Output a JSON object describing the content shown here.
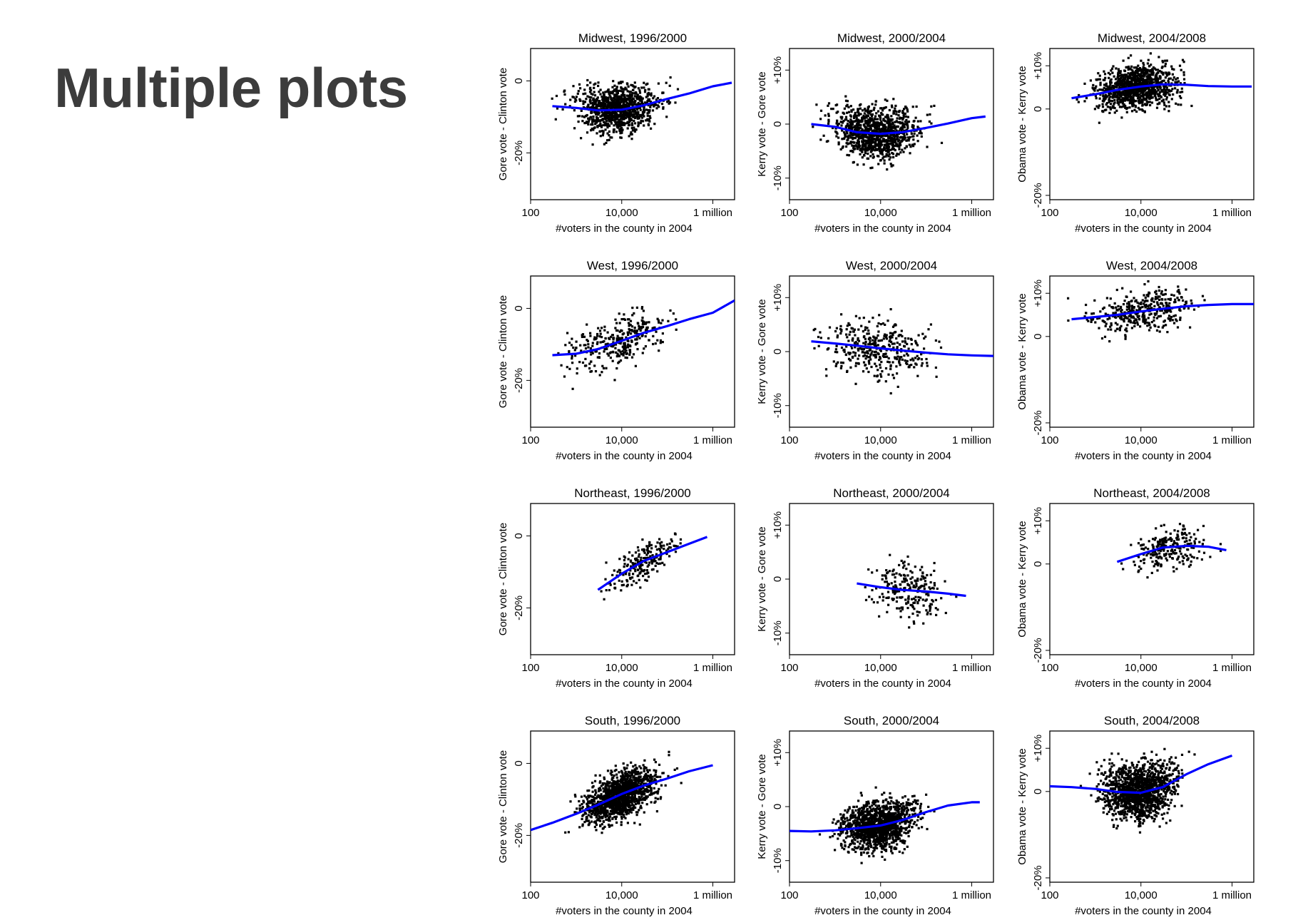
{
  "slide": {
    "title": "Multiple plots"
  },
  "shared": {
    "xlabel": "#voters in the county in 2004",
    "x_ticks": [
      {
        "value": 100,
        "label": "100"
      },
      {
        "value": 10000,
        "label": "10,000"
      },
      {
        "value": 1000000,
        "label": "1 million"
      }
    ],
    "x_scale": "log",
    "xlim": [
      100,
      3000000
    ],
    "grid": false,
    "point_color": "#000000",
    "line_color": "#0000ff"
  },
  "chart_data": [
    {
      "type": "scatter",
      "title": "Midwest, 1996/2000",
      "ylabel": "Gore vote - Clinton vote",
      "y_ticks": [
        {
          "value": 0,
          "label": "0"
        },
        {
          "value": -20,
          "label": "-20%"
        }
      ],
      "ylim": [
        -33,
        9
      ],
      "points": {
        "n": 1050,
        "seed": 101,
        "x_log_mean": 3.9,
        "x_log_sd": 0.62,
        "x_log_min": 2.3,
        "x_log_max": 6.2,
        "y_noise_sd": 4.4,
        "y_min": -22,
        "y_max": 8
      },
      "series": [
        {
          "x": [
            300,
            1000,
            3000,
            10000,
            30000,
            100000,
            300000,
            1000000,
            2600000
          ],
          "y": [
            -7,
            -7.5,
            -8.2,
            -8,
            -6.8,
            -5,
            -3.5,
            -1.5,
            -0.5
          ]
        }
      ]
    },
    {
      "type": "scatter",
      "title": "Midwest, 2000/2004",
      "ylabel": "Kerry vote - Gore vote",
      "y_ticks": [
        {
          "value": 10,
          "label": "+10%"
        },
        {
          "value": 0,
          "label": "0"
        },
        {
          "value": -10,
          "label": "-10%"
        }
      ],
      "ylim": [
        -14,
        14
      ],
      "points": {
        "n": 1050,
        "seed": 102,
        "x_log_mean": 3.9,
        "x_log_sd": 0.62,
        "x_log_min": 2.3,
        "x_log_max": 6.1,
        "y_noise_sd": 3.3,
        "y_min": -10,
        "y_max": 13
      },
      "series": [
        {
          "x": [
            300,
            1000,
            3000,
            10000,
            30000,
            100000,
            300000,
            1000000,
            2000000
          ],
          "y": [
            0,
            -0.5,
            -1.5,
            -1.8,
            -1.5,
            -0.7,
            0.1,
            1.1,
            1.4
          ]
        }
      ]
    },
    {
      "type": "scatter",
      "title": "Midwest, 2004/2008",
      "ylabel": "Obama vote - Kerry vote",
      "y_ticks": [
        {
          "value": 10,
          "label": "+10%"
        },
        {
          "value": 0,
          "label": "0"
        },
        {
          "value": -20,
          "label": "-20%"
        }
      ],
      "ylim": [
        -21,
        14
      ],
      "points": {
        "n": 1050,
        "seed": 103,
        "x_log_mean": 3.9,
        "x_log_sd": 0.62,
        "x_log_min": 2.3,
        "x_log_max": 6.4,
        "y_noise_sd": 3.4,
        "y_min": -5,
        "y_max": 13
      },
      "series": [
        {
          "x": [
            300,
            1000,
            3000,
            10000,
            30000,
            100000,
            300000,
            1000000,
            2700000
          ],
          "y": [
            2.5,
            3.4,
            4.4,
            5.2,
            5.7,
            5.6,
            5.3,
            5.2,
            5.2
          ]
        }
      ]
    },
    {
      "type": "scatter",
      "title": "West, 1996/2000",
      "ylabel": "Gore vote - Clinton vote",
      "y_ticks": [
        {
          "value": 0,
          "label": "0"
        },
        {
          "value": -20,
          "label": "-20%"
        }
      ],
      "ylim": [
        -33,
        9
      ],
      "points": {
        "n": 330,
        "seed": 201,
        "x_log_mean": 3.9,
        "x_log_sd": 0.75,
        "x_log_min": 2.4,
        "x_log_max": 6.1,
        "y_noise_sd": 4.4,
        "y_min": -27,
        "y_max": 3
      },
      "series": [
        {
          "x": [
            300,
            1000,
            3000,
            10000,
            30000,
            100000,
            300000,
            1000000,
            3000000
          ],
          "y": [
            -13,
            -12.6,
            -11.3,
            -9,
            -6.8,
            -4.9,
            -3,
            -1.2,
            2.2
          ]
        }
      ]
    },
    {
      "type": "scatter",
      "title": "West, 2000/2004",
      "ylabel": "Kerry vote - Gore vote",
      "y_ticks": [
        {
          "value": 10,
          "label": "+10%"
        },
        {
          "value": 0,
          "label": "0"
        },
        {
          "value": -10,
          "label": "-10%"
        }
      ],
      "ylim": [
        -14,
        14
      ],
      "points": {
        "n": 370,
        "seed": 202,
        "x_log_mean": 3.95,
        "x_log_sd": 0.78,
        "x_log_min": 2.4,
        "x_log_max": 6.5,
        "y_noise_sd": 3.8,
        "y_min": -8,
        "y_max": 12
      },
      "series": [
        {
          "x": [
            300,
            1000,
            3000,
            10000,
            30000,
            100000,
            300000,
            1000000,
            3000000
          ],
          "y": [
            1.9,
            1.5,
            1.1,
            0.6,
            0.2,
            -0.2,
            -0.5,
            -0.7,
            -0.8
          ]
        }
      ]
    },
    {
      "type": "scatter",
      "title": "West, 2004/2008",
      "ylabel": "Obama vote - Kerry vote",
      "y_ticks": [
        {
          "value": 10,
          "label": "+10%"
        },
        {
          "value": 0,
          "label": "0"
        },
        {
          "value": -20,
          "label": "-20%"
        }
      ],
      "ylim": [
        -21,
        14
      ],
      "points": {
        "n": 380,
        "seed": 203,
        "x_log_mean": 4.0,
        "x_log_sd": 0.75,
        "x_log_min": 2.4,
        "x_log_max": 6.3,
        "y_noise_sd": 3.2,
        "y_min": -3,
        "y_max": 13
      },
      "series": [
        {
          "x": [
            300,
            1000,
            3000,
            10000,
            30000,
            100000,
            300000,
            1000000,
            3000000
          ],
          "y": [
            4,
            4.5,
            5,
            5.8,
            6.4,
            7,
            7.3,
            7.5,
            7.5
          ]
        }
      ]
    },
    {
      "type": "scatter",
      "title": "Northeast, 1996/2000",
      "ylabel": "Gore vote - Clinton vote",
      "y_ticks": [
        {
          "value": 0,
          "label": "0"
        },
        {
          "value": -20,
          "label": "-20%"
        }
      ],
      "ylim": [
        -33,
        9
      ],
      "points": {
        "n": 220,
        "seed": 301,
        "x_log_mean": 4.45,
        "x_log_sd": 0.55,
        "x_log_min": 3.4,
        "x_log_max": 5.9,
        "y_noise_sd": 3.6,
        "y_min": -24,
        "y_max": 3
      },
      "series": [
        {
          "x": [
            3000,
            10000,
            30000,
            100000,
            300000,
            750000
          ],
          "y": [
            -15,
            -10.5,
            -7,
            -4.5,
            -2.2,
            -0.3
          ]
        }
      ]
    },
    {
      "type": "scatter",
      "title": "Northeast, 2000/2004",
      "ylabel": "Kerry vote - Gore vote",
      "y_ticks": [
        {
          "value": 10,
          "label": "+10%"
        },
        {
          "value": 0,
          "label": "0"
        },
        {
          "value": -10,
          "label": "-10%"
        }
      ],
      "ylim": [
        -14,
        14
      ],
      "points": {
        "n": 230,
        "seed": 302,
        "x_log_mean": 4.6,
        "x_log_sd": 0.55,
        "x_log_min": 3.4,
        "x_log_max": 6.0,
        "y_noise_sd": 3.6,
        "y_min": -12,
        "y_max": 8
      },
      "series": [
        {
          "x": [
            3000,
            10000,
            30000,
            100000,
            300000,
            750000
          ],
          "y": [
            -0.8,
            -1.5,
            -2,
            -2.3,
            -2.7,
            -3.1
          ]
        }
      ]
    },
    {
      "type": "scatter",
      "title": "Northeast, 2004/2008",
      "ylabel": "Obama vote - Kerry vote",
      "y_ticks": [
        {
          "value": 10,
          "label": "+10%"
        },
        {
          "value": 0,
          "label": "0"
        },
        {
          "value": -20,
          "label": "-20%"
        }
      ],
      "ylim": [
        -21,
        14
      ],
      "points": {
        "n": 240,
        "seed": 303,
        "x_log_mean": 4.6,
        "x_log_sd": 0.55,
        "x_log_min": 3.4,
        "x_log_max": 6.0,
        "y_noise_sd": 3.2,
        "y_min": -9,
        "y_max": 12
      },
      "series": [
        {
          "x": [
            3000,
            10000,
            30000,
            100000,
            300000,
            750000
          ],
          "y": [
            0.5,
            2.3,
            3.8,
            4.2,
            4,
            3.2
          ]
        }
      ]
    },
    {
      "type": "scatter",
      "title": "South, 1996/2000",
      "ylabel": "Gore vote - Clinton vote",
      "y_ticks": [
        {
          "value": 0,
          "label": "0"
        },
        {
          "value": -20,
          "label": "-20%"
        }
      ],
      "ylim": [
        -33,
        9
      ],
      "points": {
        "n": 1350,
        "seed": 401,
        "x_log_mean": 3.95,
        "x_log_sd": 0.55,
        "x_log_min": 2.2,
        "x_log_max": 6.1,
        "y_noise_sd": 4.4,
        "y_min": -24,
        "y_max": 6
      },
      "series": [
        {
          "x": [
            100,
            300,
            1000,
            3000,
            10000,
            30000,
            100000,
            300000,
            1000000
          ],
          "y": [
            -18.5,
            -16.5,
            -14,
            -11.5,
            -8.5,
            -6.2,
            -4.2,
            -2.2,
            -0.5
          ]
        }
      ]
    },
    {
      "type": "scatter",
      "title": "South, 2000/2004",
      "ylabel": "Kerry vote - Gore vote",
      "y_ticks": [
        {
          "value": 10,
          "label": "+10%"
        },
        {
          "value": 0,
          "label": "0"
        },
        {
          "value": -10,
          "label": "-10%"
        }
      ],
      "ylim": [
        -14,
        14
      ],
      "points": {
        "n": 1350,
        "seed": 402,
        "x_log_mean": 3.95,
        "x_log_sd": 0.55,
        "x_log_min": 2.2,
        "x_log_max": 6.1,
        "y_noise_sd": 3.2,
        "y_min": -13,
        "y_max": 11
      },
      "series": [
        {
          "x": [
            100,
            300,
            1000,
            3000,
            10000,
            30000,
            100000,
            300000,
            1000000,
            1500000
          ],
          "y": [
            -4.5,
            -4.6,
            -4.4,
            -4,
            -3.5,
            -2.5,
            -1,
            0.2,
            0.8,
            0.8
          ]
        }
      ]
    },
    {
      "type": "scatter",
      "title": "South, 2004/2008",
      "ylabel": "Obama vote - Kerry vote",
      "y_ticks": [
        {
          "value": 10,
          "label": "+10%"
        },
        {
          "value": 0,
          "label": "0"
        },
        {
          "value": -20,
          "label": "-20%"
        }
      ],
      "ylim": [
        -21,
        14
      ],
      "points": {
        "n": 1350,
        "seed": 403,
        "x_log_mean": 3.95,
        "x_log_sd": 0.55,
        "x_log_min": 2.2,
        "x_log_max": 6.1,
        "y_noise_sd": 4.5,
        "y_min": -20,
        "y_max": 13
      },
      "series": [
        {
          "x": [
            100,
            300,
            1000,
            3000,
            10000,
            30000,
            100000,
            300000,
            1000000
          ],
          "y": [
            1.2,
            1,
            0.6,
            -0.1,
            -0.3,
            1,
            4,
            6.3,
            8.3
          ]
        }
      ]
    }
  ]
}
